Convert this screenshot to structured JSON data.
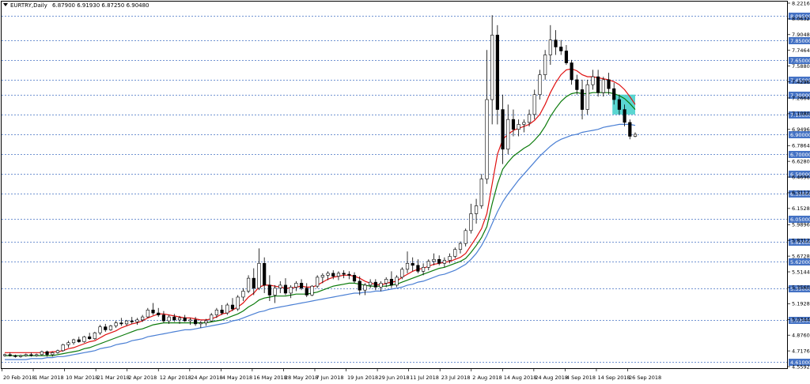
{
  "window": {
    "title_prefix": "EURTRY,Daily",
    "ohlc": "6.87900 6.91930 6.87250 6.90480"
  },
  "colors": {
    "background": "#ffffff",
    "frame": "#000000",
    "level_line": "#4472c4",
    "level_tag_bg": "#4472c4",
    "candle": "#000000",
    "ma_fast": "#e01010",
    "ma_mid": "#0a7a0a",
    "ma_slow": "#4a7fd4",
    "highlight_box": "#48d1cc"
  },
  "chart_data": {
    "type": "candlestick",
    "symbol": "EURTRY",
    "timeframe": "Daily",
    "ylim": [
      4.5592,
      8.2216
    ],
    "y_ticks": [
      "8.22160",
      "8.06320",
      "7.90480",
      "7.74640",
      "7.58800",
      "7.42960",
      "7.26640",
      "7.10800",
      "6.94960",
      "6.78640",
      "6.62800",
      "6.46960",
      "6.31120",
      "6.15280",
      "5.98960",
      "5.83120",
      "5.67280",
      "5.51440",
      "5.35600",
      "5.19280",
      "5.03440",
      "4.87600",
      "4.71760",
      "4.55920"
    ],
    "x_ticks": [
      "20 Feb 2018",
      "1 Mar 2018",
      "10 Mar 2018",
      "21 Mar 2018",
      "2 Apr 2018",
      "12 Apr 2018",
      "24 Apr 2018",
      "4 May 2018",
      "16 May 2018",
      "28 May 2018",
      "7 Jun 2018",
      "19 Jun 2018",
      "29 Jun 2018",
      "11 Jul 2018",
      "23 Jul 2018",
      "2 Aug 2018",
      "14 Aug 2018",
      "24 Aug 2018",
      "4 Sep 2018",
      "14 Sep 2018",
      "26 Sep 2018"
    ],
    "levels": [
      "8.09500",
      "7.85000",
      "7.65000",
      "7.45000",
      "7.30000",
      "7.10000",
      "6.90000",
      "6.70000",
      "6.50000",
      "6.30000",
      "6.05000",
      "5.82000",
      "5.62000",
      "5.35000",
      "5.03000",
      "4.61000"
    ],
    "highlight_box": {
      "x_from": "24 Sep 2018",
      "x_to": "28 Sep 2018",
      "y_from": 7.1,
      "y_to": 7.3
    },
    "candles": [
      [
        4.67,
        4.69,
        4.66,
        4.68
      ],
      [
        4.68,
        4.7,
        4.66,
        4.67
      ],
      [
        4.67,
        4.68,
        4.65,
        4.66
      ],
      [
        4.66,
        4.68,
        4.65,
        4.67
      ],
      [
        4.67,
        4.69,
        4.66,
        4.68
      ],
      [
        4.68,
        4.7,
        4.66,
        4.67
      ],
      [
        4.67,
        4.69,
        4.66,
        4.68
      ],
      [
        4.68,
        4.72,
        4.67,
        4.71
      ],
      [
        4.71,
        4.72,
        4.66,
        4.68
      ],
      [
        4.68,
        4.71,
        4.66,
        4.7
      ],
      [
        4.7,
        4.73,
        4.69,
        4.72
      ],
      [
        4.72,
        4.79,
        4.71,
        4.78
      ],
      [
        4.78,
        4.82,
        4.75,
        4.8
      ],
      [
        4.8,
        4.84,
        4.78,
        4.83
      ],
      [
        4.83,
        4.86,
        4.8,
        4.81
      ],
      [
        4.81,
        4.87,
        4.8,
        4.86
      ],
      [
        4.86,
        4.9,
        4.83,
        4.84
      ],
      [
        4.84,
        4.91,
        4.83,
        4.9
      ],
      [
        4.9,
        4.98,
        4.88,
        4.96
      ],
      [
        4.96,
        4.99,
        4.91,
        4.93
      ],
      [
        4.93,
        4.98,
        4.92,
        4.97
      ],
      [
        4.97,
        5.02,
        4.95,
        5.0
      ],
      [
        5.0,
        5.05,
        4.97,
        4.99
      ],
      [
        4.99,
        5.03,
        4.97,
        5.02
      ],
      [
        5.02,
        5.06,
        4.99,
        5.01
      ],
      [
        5.01,
        5.05,
        4.98,
        5.03
      ],
      [
        5.03,
        5.08,
        5.01,
        5.06
      ],
      [
        5.06,
        5.15,
        5.05,
        5.13
      ],
      [
        5.13,
        5.2,
        5.08,
        5.1
      ],
      [
        5.1,
        5.15,
        5.06,
        5.08
      ],
      [
        5.08,
        5.12,
        5.0,
        5.02
      ],
      [
        5.02,
        5.08,
        4.99,
        5.06
      ],
      [
        5.06,
        5.09,
        5.01,
        5.03
      ],
      [
        5.03,
        5.07,
        4.99,
        5.05
      ],
      [
        5.05,
        5.08,
        5.01,
        5.02
      ],
      [
        5.02,
        5.05,
        4.98,
        5.03
      ],
      [
        5.03,
        5.06,
        4.97,
        4.99
      ],
      [
        4.99,
        5.02,
        4.95,
        5.0
      ],
      [
        5.0,
        5.04,
        4.97,
        5.02
      ],
      [
        5.02,
        5.1,
        5.01,
        5.08
      ],
      [
        5.08,
        5.15,
        5.05,
        5.13
      ],
      [
        5.13,
        5.18,
        5.08,
        5.1
      ],
      [
        5.1,
        5.2,
        5.08,
        5.18
      ],
      [
        5.18,
        5.25,
        5.12,
        5.14
      ],
      [
        5.14,
        5.28,
        5.12,
        5.26
      ],
      [
        5.26,
        5.35,
        5.22,
        5.32
      ],
      [
        5.32,
        5.48,
        5.3,
        5.45
      ],
      [
        5.45,
        5.55,
        5.28,
        5.35
      ],
      [
        5.35,
        5.75,
        5.33,
        5.6
      ],
      [
        5.6,
        5.66,
        5.3,
        5.38
      ],
      [
        5.38,
        5.48,
        5.22,
        5.28
      ],
      [
        5.28,
        5.38,
        5.2,
        5.35
      ],
      [
        5.35,
        5.42,
        5.3,
        5.38
      ],
      [
        5.38,
        5.45,
        5.28,
        5.3
      ],
      [
        5.3,
        5.38,
        5.25,
        5.36
      ],
      [
        5.36,
        5.42,
        5.32,
        5.4
      ],
      [
        5.4,
        5.44,
        5.33,
        5.35
      ],
      [
        5.35,
        5.4,
        5.26,
        5.28
      ],
      [
        5.28,
        5.38,
        5.27,
        5.37
      ],
      [
        5.37,
        5.48,
        5.35,
        5.46
      ],
      [
        5.46,
        5.5,
        5.4,
        5.48
      ],
      [
        5.48,
        5.52,
        5.43,
        5.5
      ],
      [
        5.5,
        5.53,
        5.44,
        5.47
      ],
      [
        5.47,
        5.52,
        5.43,
        5.5
      ],
      [
        5.5,
        5.53,
        5.45,
        5.49
      ],
      [
        5.49,
        5.52,
        5.44,
        5.48
      ],
      [
        5.48,
        5.51,
        5.4,
        5.42
      ],
      [
        5.42,
        5.47,
        5.28,
        5.33
      ],
      [
        5.33,
        5.4,
        5.28,
        5.38
      ],
      [
        5.38,
        5.44,
        5.35,
        5.41
      ],
      [
        5.41,
        5.44,
        5.33,
        5.36
      ],
      [
        5.36,
        5.42,
        5.32,
        5.4
      ],
      [
        5.4,
        5.46,
        5.36,
        5.44
      ],
      [
        5.44,
        5.52,
        5.35,
        5.38
      ],
      [
        5.38,
        5.48,
        5.36,
        5.46
      ],
      [
        5.46,
        5.56,
        5.44,
        5.54
      ],
      [
        5.54,
        5.72,
        5.5,
        5.6
      ],
      [
        5.6,
        5.66,
        5.52,
        5.58
      ],
      [
        5.58,
        5.64,
        5.5,
        5.52
      ],
      [
        5.52,
        5.6,
        5.48,
        5.56
      ],
      [
        5.56,
        5.64,
        5.53,
        5.62
      ],
      [
        5.62,
        5.7,
        5.58,
        5.64
      ],
      [
        5.64,
        5.68,
        5.58,
        5.6
      ],
      [
        5.6,
        5.66,
        5.56,
        5.63
      ],
      [
        5.63,
        5.7,
        5.6,
        5.67
      ],
      [
        5.67,
        5.76,
        5.65,
        5.74
      ],
      [
        5.74,
        5.82,
        5.7,
        5.8
      ],
      [
        5.8,
        5.95,
        5.77,
        5.93
      ],
      [
        5.93,
        6.2,
        5.9,
        6.1
      ],
      [
        6.1,
        6.25,
        6.0,
        6.18
      ],
      [
        6.18,
        6.5,
        6.15,
        6.45
      ],
      [
        6.45,
        7.75,
        6.4,
        7.25
      ],
      [
        7.25,
        8.1,
        7.0,
        7.9
      ],
      [
        7.9,
        8.0,
        7.0,
        7.15
      ],
      [
        7.15,
        7.3,
        6.6,
        6.75
      ],
      [
        6.75,
        7.2,
        6.7,
        7.05
      ],
      [
        7.05,
        7.15,
        6.88,
        6.95
      ],
      [
        6.95,
        7.05,
        6.88,
        7.0
      ],
      [
        7.0,
        7.05,
        6.92,
        7.02
      ],
      [
        7.02,
        7.15,
        6.98,
        7.1
      ],
      [
        7.1,
        7.35,
        7.05,
        7.3
      ],
      [
        7.3,
        7.55,
        7.25,
        7.5
      ],
      [
        7.5,
        7.75,
        7.45,
        7.7
      ],
      [
        7.7,
        8.0,
        7.6,
        7.85
      ],
      [
        7.85,
        7.95,
        7.7,
        7.78
      ],
      [
        7.78,
        7.85,
        7.7,
        7.74
      ],
      [
        7.74,
        7.8,
        7.6,
        7.62
      ],
      [
        7.62,
        7.65,
        7.4,
        7.45
      ],
      [
        7.45,
        7.5,
        7.3,
        7.35
      ],
      [
        7.35,
        7.45,
        7.05,
        7.15
      ],
      [
        7.15,
        7.45,
        7.1,
        7.4
      ],
      [
        7.4,
        7.55,
        7.35,
        7.48
      ],
      [
        7.48,
        7.55,
        7.28,
        7.32
      ],
      [
        7.32,
        7.48,
        7.28,
        7.45
      ],
      [
        7.45,
        7.52,
        7.3,
        7.36
      ],
      [
        7.36,
        7.42,
        7.2,
        7.25
      ],
      [
        7.25,
        7.3,
        7.1,
        7.15
      ],
      [
        7.15,
        7.2,
        6.98,
        7.02
      ],
      [
        7.02,
        7.05,
        6.85,
        6.88
      ],
      [
        6.88,
        6.92,
        6.87,
        6.9
      ]
    ],
    "ma_fast": [
      4.7,
      4.7,
      4.7,
      4.7,
      4.7,
      4.7,
      4.7,
      4.7,
      4.7,
      4.71,
      4.71,
      4.72,
      4.74,
      4.75,
      4.77,
      4.79,
      4.81,
      4.82,
      4.85,
      4.88,
      4.9,
      4.92,
      4.95,
      4.97,
      4.99,
      5.0,
      5.02,
      5.05,
      5.07,
      5.09,
      5.09,
      5.08,
      5.07,
      5.06,
      5.05,
      5.05,
      5.04,
      5.03,
      5.03,
      5.04,
      5.06,
      5.09,
      5.1,
      5.13,
      5.16,
      5.2,
      5.26,
      5.3,
      5.36,
      5.38,
      5.38,
      5.37,
      5.36,
      5.35,
      5.35,
      5.36,
      5.37,
      5.36,
      5.36,
      5.38,
      5.41,
      5.44,
      5.46,
      5.47,
      5.48,
      5.48,
      5.47,
      5.45,
      5.42,
      5.4,
      5.39,
      5.38,
      5.4,
      5.41,
      5.42,
      5.46,
      5.49,
      5.52,
      5.54,
      5.55,
      5.57,
      5.59,
      5.6,
      5.61,
      5.62,
      5.64,
      5.66,
      5.7,
      5.78,
      5.86,
      5.95,
      6.1,
      6.4,
      6.7,
      6.85,
      6.9,
      6.94,
      6.96,
      6.98,
      7.0,
      7.04,
      7.1,
      7.2,
      7.32,
      7.42,
      7.5,
      7.55,
      7.56,
      7.54,
      7.5,
      7.48,
      7.48,
      7.47,
      7.46,
      7.45,
      7.43,
      7.4,
      7.35,
      7.28,
      7.2
    ],
    "ma_mid": [
      4.67,
      4.67,
      4.67,
      4.67,
      4.67,
      4.67,
      4.67,
      4.67,
      4.67,
      4.67,
      4.68,
      4.69,
      4.7,
      4.71,
      4.72,
      4.74,
      4.75,
      4.77,
      4.79,
      4.81,
      4.83,
      4.85,
      4.87,
      4.89,
      4.91,
      4.93,
      4.94,
      4.96,
      4.98,
      4.99,
      5.0,
      5.0,
      5.0,
      5.0,
      5.0,
      5.0,
      5.0,
      5.0,
      5.0,
      5.01,
      5.02,
      5.03,
      5.05,
      5.07,
      5.09,
      5.12,
      5.16,
      5.19,
      5.23,
      5.25,
      5.26,
      5.27,
      5.27,
      5.27,
      5.28,
      5.29,
      5.29,
      5.29,
      5.3,
      5.31,
      5.33,
      5.35,
      5.37,
      5.38,
      5.39,
      5.4,
      5.4,
      5.39,
      5.38,
      5.37,
      5.37,
      5.37,
      5.37,
      5.38,
      5.39,
      5.41,
      5.43,
      5.45,
      5.47,
      5.49,
      5.51,
      5.53,
      5.55,
      5.56,
      5.58,
      5.6,
      5.62,
      5.65,
      5.71,
      5.78,
      5.86,
      5.97,
      6.2,
      6.4,
      6.55,
      6.62,
      6.68,
      6.72,
      6.76,
      6.79,
      6.84,
      6.9,
      6.98,
      7.08,
      7.16,
      7.23,
      7.28,
      7.31,
      7.32,
      7.31,
      7.31,
      7.32,
      7.32,
      7.32,
      7.32,
      7.31,
      7.29,
      7.26,
      7.21,
      7.15
    ],
    "ma_slow": [
      4.63,
      4.63,
      4.63,
      4.63,
      4.63,
      4.64,
      4.64,
      4.64,
      4.65,
      4.65,
      4.66,
      4.66,
      4.67,
      4.68,
      4.69,
      4.7,
      4.71,
      4.72,
      4.74,
      4.75,
      4.76,
      4.78,
      4.79,
      4.8,
      4.82,
      4.83,
      4.84,
      4.86,
      4.87,
      4.88,
      4.89,
      4.9,
      4.91,
      4.92,
      4.93,
      4.93,
      4.94,
      4.95,
      4.96,
      4.97,
      4.98,
      4.99,
      5.0,
      5.02,
      5.03,
      5.05,
      5.07,
      5.09,
      5.11,
      5.12,
      5.14,
      5.15,
      5.16,
      5.17,
      5.18,
      5.19,
      5.2,
      5.21,
      5.22,
      5.23,
      5.24,
      5.25,
      5.26,
      5.27,
      5.28,
      5.29,
      5.3,
      5.3,
      5.31,
      5.31,
      5.32,
      5.32,
      5.33,
      5.34,
      5.35,
      5.36,
      5.38,
      5.39,
      5.41,
      5.42,
      5.44,
      5.46,
      5.48,
      5.49,
      5.51,
      5.53,
      5.56,
      5.59,
      5.64,
      5.7,
      5.78,
      5.88,
      6.0,
      6.12,
      6.22,
      6.3,
      6.37,
      6.44,
      6.5,
      6.56,
      6.62,
      6.68,
      6.73,
      6.78,
      6.82,
      6.85,
      6.87,
      6.89,
      6.9,
      6.92,
      6.93,
      6.94,
      6.95,
      6.97,
      6.98,
      6.99,
      7.0,
      7.0,
      7.0,
      6.99
    ]
  }
}
